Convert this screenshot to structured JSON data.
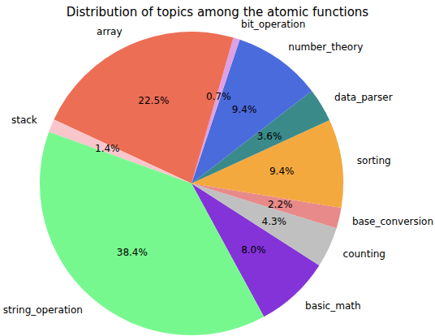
{
  "chart_data": {
    "type": "pie",
    "title": "Distribution of topics among the atomic functions",
    "categories": [
      "basic_math",
      "counting",
      "base_conversion",
      "sorting",
      "data_parser",
      "number_theory",
      "bit_operation",
      "array",
      "stack",
      "string_operation"
    ],
    "values": [
      8.0,
      4.3,
      2.2,
      9.4,
      3.6,
      9.4,
      0.7,
      22.5,
      1.4,
      38.4
    ],
    "value_labels": [
      "8.0%",
      "4.3%",
      "2.2%",
      "9.4%",
      "3.6%",
      "9.4%",
      "0.7%",
      "22.5%",
      "1.4%",
      "38.4%"
    ],
    "colors": [
      "#8433d9",
      "#c0c0c0",
      "#e88a8a",
      "#f4a93f",
      "#3a8a8a",
      "#4a6bdc",
      "#dca0e6",
      "#ec6e55",
      "#f9c6cc",
      "#77f88f"
    ],
    "data_labels": true
  }
}
